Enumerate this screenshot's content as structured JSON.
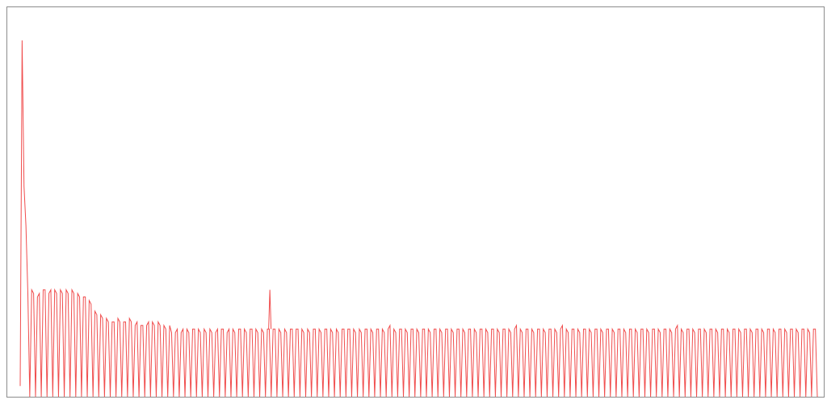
{
  "chart_data": {
    "type": "line",
    "title": "",
    "xlabel": "",
    "ylabel": "",
    "grid": false,
    "legend": "none",
    "ylim": [
      0,
      100
    ],
    "series": [
      {
        "color": "#f04d4d",
        "values": [
          3,
          100,
          59,
          48,
          29,
          0,
          30,
          29,
          0,
          28,
          29,
          0,
          30,
          30,
          0,
          29,
          30,
          0,
          30,
          29,
          0,
          30,
          29,
          0,
          30,
          29,
          0,
          30,
          29,
          0,
          29,
          28,
          0,
          28,
          28,
          0,
          27,
          26,
          0,
          24,
          23,
          0,
          23,
          22,
          0,
          22,
          21,
          0,
          21,
          21,
          0,
          22,
          21,
          0,
          21,
          21,
          0,
          22,
          21,
          0,
          20,
          21,
          0,
          20,
          20,
          0,
          20,
          21,
          0,
          21,
          20,
          0,
          21,
          20,
          0,
          20,
          19,
          0,
          20,
          18,
          0,
          18,
          19,
          0,
          18,
          19,
          0,
          19,
          18,
          0,
          19,
          19,
          0,
          19,
          18,
          0,
          19,
          18,
          0,
          19,
          18,
          0,
          18,
          19,
          0,
          19,
          19,
          0,
          18,
          19,
          0,
          19,
          18,
          0,
          19,
          19,
          0,
          19,
          18,
          0,
          19,
          19,
          0,
          19,
          18,
          0,
          19,
          18,
          0,
          19,
          19,
          0,
          19,
          19,
          0,
          19,
          18,
          0,
          19,
          18,
          0,
          19,
          19,
          0,
          19,
          19,
          0,
          19,
          18,
          0,
          19,
          18,
          0,
          19,
          19,
          0,
          19,
          18,
          0,
          19,
          19,
          0,
          19,
          18,
          0,
          19,
          18,
          0,
          19,
          19,
          0,
          19,
          19,
          0,
          19,
          18,
          0,
          19,
          18,
          0,
          19,
          19,
          0,
          19,
          18,
          0,
          19,
          19,
          0,
          19,
          18,
          0,
          19,
          20,
          0,
          19,
          18,
          0,
          19,
          19,
          0,
          19,
          18,
          0,
          19,
          19,
          0,
          19,
          18,
          0,
          19,
          19,
          0,
          19,
          18,
          0,
          19,
          19,
          0,
          19,
          18,
          0,
          19,
          19,
          0,
          19,
          18,
          0,
          19,
          19,
          0,
          19,
          18,
          0,
          19,
          19,
          0,
          19,
          18,
          0,
          19,
          19,
          0,
          19,
          18,
          0,
          19,
          19,
          0,
          19,
          18,
          0,
          19,
          19,
          0,
          19,
          18,
          0,
          19,
          20,
          0,
          19,
          18,
          0,
          19,
          19,
          0,
          19,
          18,
          0,
          19,
          19,
          0,
          19,
          18,
          0,
          19,
          19,
          0,
          19,
          18,
          0,
          19,
          20,
          0,
          19,
          18,
          0,
          19,
          19,
          0,
          19,
          18,
          0,
          19,
          19,
          0,
          19,
          18,
          0,
          19,
          19,
          0,
          19,
          18,
          0,
          19,
          19,
          0,
          19,
          18,
          0,
          19,
          19,
          0,
          19,
          18,
          0,
          19,
          19,
          0,
          19,
          18,
          0,
          19,
          19,
          0,
          19,
          18,
          0,
          19,
          19,
          0,
          19,
          18,
          0,
          19,
          19,
          0,
          19,
          18,
          0,
          19,
          20,
          0,
          19,
          18,
          0,
          19,
          19,
          0,
          19,
          18,
          0,
          19,
          19,
          0,
          19,
          18,
          0,
          19,
          19,
          0,
          19,
          18,
          0,
          19,
          19,
          0,
          19,
          18,
          0,
          19,
          19,
          0,
          19,
          18,
          0,
          19,
          19,
          0,
          19,
          18,
          0,
          19,
          19,
          0,
          19,
          18,
          0,
          19,
          19,
          0,
          19,
          18,
          0,
          19,
          19,
          0,
          19,
          18,
          0,
          19,
          19,
          0,
          19,
          18,
          0,
          19,
          19,
          0,
          19,
          18,
          0,
          19,
          19,
          0
        ]
      }
    ],
    "annotations": [
      {
        "index": 130,
        "value": 30
      }
    ]
  }
}
